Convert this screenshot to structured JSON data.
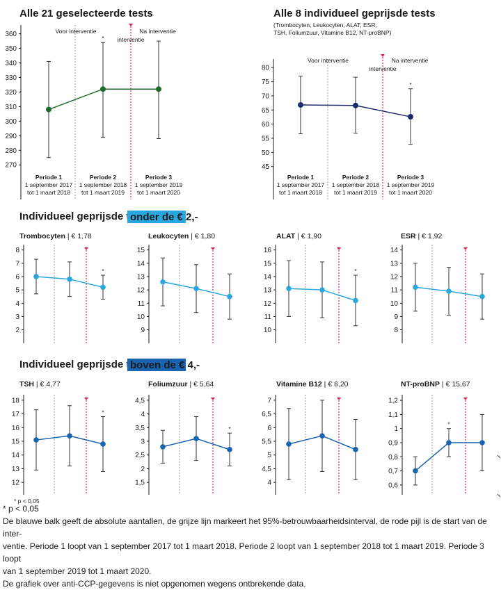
{
  "colors": {
    "green": "#1e6b2a",
    "navy": "#1f2a6e",
    "light_blue": "#2aa7de",
    "dark_blue": "#1a63b0",
    "red": "#e0224d",
    "grey": "#9a9a9a"
  },
  "section_headings": {
    "cheap": {
      "title": "Individueel geprijsde tests",
      "badge": "onder de € 2,-"
    },
    "expensive": {
      "title": "Individueel geprijsde tests",
      "badge": "boven de € 4,-"
    }
  },
  "chart_data": [
    {
      "type": "line",
      "title": "Alle 21 geselecteerde tests",
      "subtitle": "",
      "phase_labels": [
        "Voor interventie",
        "Na interventie"
      ],
      "intervention_label": "interventie",
      "periods": [
        {
          "name": "Periode 1",
          "from": "1 september 2017",
          "to": "tot 1 maart 2018"
        },
        {
          "name": "Periode 2",
          "from": "1 september 2018",
          "to": "tot 1 maart 2019"
        },
        {
          "name": "Periode 3",
          "from": "1 september 2019",
          "to": "tot 1 maart 2020"
        }
      ],
      "x": [
        "Periode 1",
        "Periode 2",
        "Periode 3"
      ],
      "y": [
        308,
        322,
        322
      ],
      "ci_low": [
        275,
        289,
        288
      ],
      "ci_high": [
        341,
        354,
        355
      ],
      "significant": [
        false,
        true,
        false
      ],
      "ylim": [
        262,
        366
      ],
      "yticks": [
        270,
        280,
        290,
        300,
        310,
        320,
        330,
        340,
        350,
        360
      ],
      "color": "green"
    },
    {
      "type": "line",
      "title": "Alle 8 individueel geprijsde tests",
      "subtitle_lines": [
        "(Trombocyten, Leukocyten, ALAT, ESR,",
        "TSH, Foliumzuur, Vitamine B12, NT-proBNP)"
      ],
      "phase_labels": [
        "Voor interventie",
        "Na interventie"
      ],
      "intervention_label": "interventie",
      "periods": [
        {
          "name": "Periode 1",
          "from": "1 september 2017",
          "to": "tot 1 maart 2018"
        },
        {
          "name": "Periode 2",
          "from": "1 september 2018",
          "to": "tot 1 maart 2019"
        },
        {
          "name": "Periode 3",
          "from": "1 september 2019",
          "to": "tot 1 maart 2020"
        }
      ],
      "x": [
        "Periode 1",
        "Periode 2",
        "Periode 3"
      ],
      "y": [
        66.8,
        66.6,
        62.6
      ],
      "ci_low": [
        56.6,
        56.8,
        52.9
      ],
      "ci_high": [
        77,
        76.6,
        72.5
      ],
      "significant": [
        false,
        false,
        true
      ],
      "ylim": [
        41,
        83
      ],
      "yticks": [
        45,
        50,
        55,
        60,
        65,
        70,
        75,
        80
      ],
      "color": "navy"
    },
    {
      "type": "line",
      "name": "Trombocyten",
      "price": "€ 1,78",
      "y": [
        6.0,
        5.8,
        5.2
      ],
      "ci_low": [
        4.7,
        4.5,
        4.3
      ],
      "ci_high": [
        7.3,
        7.1,
        6.1
      ],
      "significant": [
        false,
        false,
        true
      ],
      "ylim": [
        1.3,
        8.4
      ],
      "yticks": [
        "2",
        "3",
        "4",
        "5",
        "6",
        "7",
        "8"
      ],
      "color": "light_blue"
    },
    {
      "type": "line",
      "name": "Leukocyten",
      "price": "€ 1,80",
      "y": [
        12.6,
        12.1,
        11.5
      ],
      "ci_low": [
        10.8,
        10.3,
        9.8
      ],
      "ci_high": [
        14.4,
        13.9,
        13.2
      ],
      "significant": [
        false,
        false,
        false
      ],
      "ylim": [
        8.3,
        15.4
      ],
      "yticks": [
        "9",
        "10",
        "11",
        "12",
        "13",
        "14",
        "15"
      ],
      "color": "light_blue"
    },
    {
      "type": "line",
      "name": "ALAT",
      "price": "€ 1,90",
      "y": [
        13.1,
        13.0,
        12.2
      ],
      "ci_low": [
        11.0,
        10.9,
        10.3
      ],
      "ci_high": [
        15.2,
        15.1,
        14.1
      ],
      "significant": [
        false,
        false,
        true
      ],
      "ylim": [
        9.3,
        16.4
      ],
      "yticks": [
        "10",
        "11",
        "12",
        "13",
        "14",
        "15",
        "16"
      ],
      "color": "light_blue"
    },
    {
      "type": "line",
      "name": "ESR",
      "price": "€ 1,92",
      "y": [
        11.2,
        10.9,
        10.5
      ],
      "ci_low": [
        9.4,
        9.1,
        8.8
      ],
      "ci_high": [
        13.0,
        12.7,
        12.2
      ],
      "significant": [
        false,
        false,
        false
      ],
      "ylim": [
        7.3,
        14.4
      ],
      "yticks": [
        "8",
        "9",
        "10",
        "11",
        "12",
        "13",
        "14"
      ],
      "color": "light_blue"
    },
    {
      "type": "line",
      "name": "TSH",
      "price": "€ 4,77",
      "y": [
        15.1,
        15.4,
        14.8
      ],
      "ci_low": [
        12.9,
        13.2,
        12.8
      ],
      "ci_high": [
        17.3,
        17.6,
        16.8
      ],
      "significant": [
        false,
        false,
        true
      ],
      "ylim": [
        11.4,
        18.4
      ],
      "yticks": [
        "12",
        "13",
        "14",
        "15",
        "16",
        "17",
        "18"
      ],
      "color": "dark_blue"
    },
    {
      "type": "line",
      "name": "Foliumzuur",
      "price": "€ 5,64",
      "y": [
        2.8,
        3.1,
        2.7
      ],
      "ci_low": [
        2.2,
        2.3,
        2.1
      ],
      "ci_high": [
        3.4,
        3.9,
        3.3
      ],
      "significant": [
        false,
        false,
        true
      ],
      "ylim": [
        1.2,
        4.7
      ],
      "yticks": [
        "1,5",
        "2",
        "2,5",
        "3",
        "3,5",
        "4",
        "4,5"
      ],
      "color": "dark_blue"
    },
    {
      "type": "line",
      "name": "Vitamine B12",
      "price": "€ 6,20",
      "y": [
        5.4,
        5.7,
        5.2
      ],
      "ci_low": [
        4.1,
        4.4,
        4.1
      ],
      "ci_high": [
        6.7,
        7.0,
        6.3
      ],
      "significant": [
        false,
        false,
        false
      ],
      "ylim": [
        3.7,
        7.2
      ],
      "yticks": [
        "4",
        "4,5",
        "5",
        "5,5",
        "6",
        "6,5",
        "7"
      ],
      "color": "dark_blue"
    },
    {
      "type": "line",
      "name": "NT-proBNP",
      "price": "€ 15,67",
      "y": [
        0.7,
        0.9,
        0.9
      ],
      "ci_low": [
        0.6,
        0.8,
        0.7
      ],
      "ci_high": [
        0.8,
        1.0,
        1.1
      ],
      "significant": [
        false,
        true,
        false
      ],
      "ylim": [
        0.56,
        1.24
      ],
      "yticks": [
        "0,6",
        "0,7",
        "0,8",
        "0,9",
        "1",
        "1,1",
        "1,2"
      ],
      "color": "dark_blue"
    }
  ],
  "small_footnote": "* p < 0,05",
  "notes": {
    "line1": "* p < 0,05",
    "line2": "De blauwe balk geeft de absolute aantallen, de grijze lijn markeert het 95%-betrouwbaarheidsinterval, de rode pijl is de start van de inter-",
    "line3": "ventie. Periode 1 loopt van 1 september 2017 tot 1 maart 2018. Periode 2 loopt van 1 september 2018 tot 1 maart 2019. Periode 3 loopt",
    "line4": "van 1 september 2019 tot 1 maart 2020.",
    "line5": "De grafiek over anti-CCP-gegevens is niet opgenomen wegens ontbrekende data."
  }
}
